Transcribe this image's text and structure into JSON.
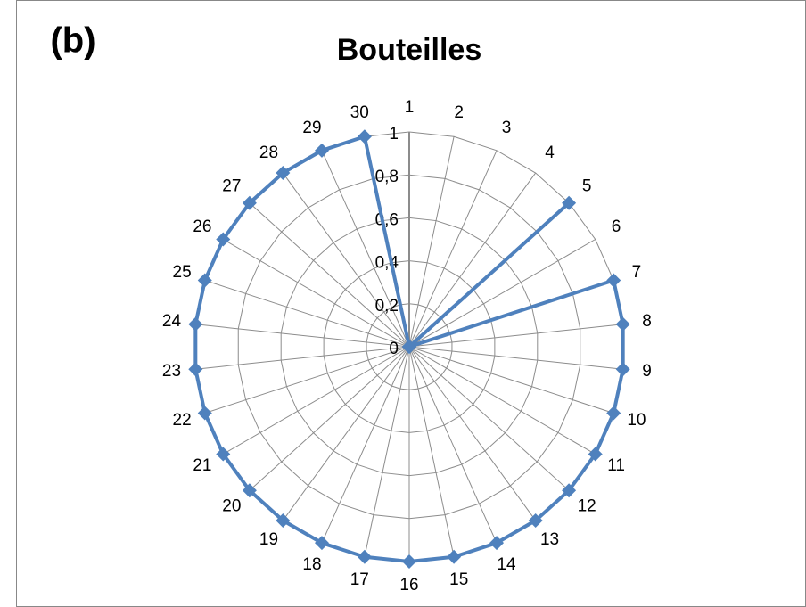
{
  "chart_data": {
    "type": "radar",
    "panel_label": "(b)",
    "title": "Bouteilles",
    "categories": [
      "1",
      "2",
      "3",
      "4",
      "5",
      "6",
      "7",
      "8",
      "9",
      "10",
      "11",
      "12",
      "13",
      "14",
      "15",
      "16",
      "17",
      "18",
      "19",
      "20",
      "21",
      "22",
      "23",
      "24",
      "25",
      "26",
      "27",
      "28",
      "29",
      "30"
    ],
    "series": [
      {
        "name": "Bouteilles",
        "color": "#4f81bd",
        "values": [
          0,
          0,
          0,
          0,
          1,
          0,
          1,
          1,
          1,
          1,
          1,
          1,
          1,
          1,
          1,
          1,
          1,
          1,
          1,
          1,
          1,
          1,
          1,
          1,
          1,
          1,
          1,
          1,
          1,
          1
        ]
      }
    ],
    "ylim": [
      0,
      1
    ],
    "yticks": [
      0,
      {
        "value": 0.2,
        "label": "0,2"
      },
      {
        "value": 0.4,
        "label": "0,4"
      },
      {
        "value": 0.6,
        "label": "0,6"
      },
      {
        "value": 0.8,
        "label": "0,8"
      },
      1
    ],
    "grid": true
  }
}
